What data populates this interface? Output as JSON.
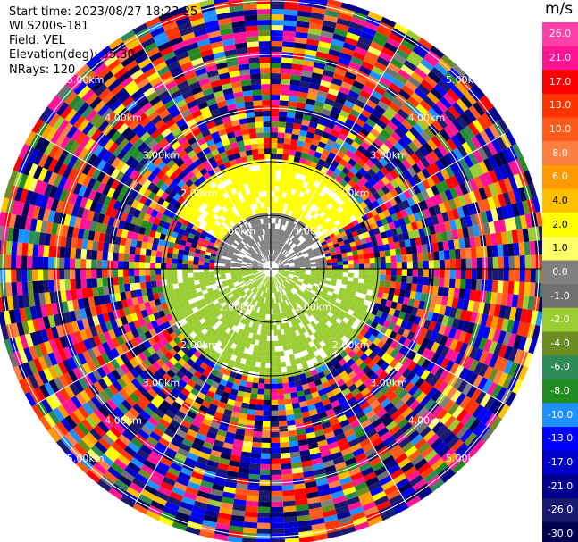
{
  "header": {
    "start_time": "Start time: 2023/08/27 18:23:25",
    "instrument": "WLS200s-181",
    "field": "Field: VEL",
    "elevation": "Elevation(deg): 35.30",
    "nrays": "NRays: 120"
  },
  "colorbar": {
    "unit": "m/s",
    "ticks": [
      "26.0",
      "21.0",
      "17.0",
      "13.0",
      "10.0",
      "8.0",
      "6.0",
      "4.0",
      "2.0",
      "1.0",
      "0.0",
      "-1.0",
      "-2.0",
      "-4.0",
      "-6.0",
      "-8.0",
      "-10.0",
      "-13.0",
      "-17.0",
      "-21.0",
      "-26.0",
      "-30.0"
    ],
    "colors": [
      "#ff3fa8",
      "#ff1493",
      "#ff0000",
      "#ff3300",
      "#ff5a1a",
      "#ff8040",
      "#ff9a00",
      "#ffc000",
      "#ffff00",
      "#ffff66",
      "#808080",
      "#707070",
      "#9acd32",
      "#6b8e23",
      "#2e8b57",
      "#228b22",
      "#1e90ff",
      "#0000ff",
      "#0000cd",
      "#00008b",
      "#191970",
      "#000050"
    ]
  },
  "chart_data": {
    "type": "heatmap",
    "projection": "polar PPI",
    "field": "VEL",
    "units": "m/s",
    "elevation_deg": 35.3,
    "nrays": 120,
    "vmin": -30.0,
    "vmax": 26.0,
    "ring_ranges_km": [
      1.0,
      2.0,
      3.0,
      4.0,
      5.0
    ],
    "ring_labels": [
      "1.00km",
      "2.00km",
      "3.00km",
      "4.00km",
      "5.00km"
    ],
    "spoke_angles_deg": [
      0,
      30,
      60,
      90,
      120,
      150,
      180,
      210,
      240,
      270,
      300,
      330
    ],
    "regions": [
      {
        "range_km": [
          0.0,
          1.0
        ],
        "bearing_deg": [
          270,
          90
        ],
        "dominant_value": 0.0,
        "description": "gray near-zero"
      },
      {
        "range_km": [
          1.0,
          2.0
        ],
        "bearing_deg": [
          300,
          60
        ],
        "dominant_value": 2.0,
        "description": "yellow"
      },
      {
        "range_km": [
          0.0,
          2.0
        ],
        "bearing_deg": [
          90,
          270
        ],
        "dominant_value": -2.0,
        "description": "olive green"
      },
      {
        "range_km": [
          2.0,
          5.0
        ],
        "bearing_deg": [
          0,
          360
        ],
        "dominant_value": null,
        "description": "noisy random values"
      }
    ]
  }
}
